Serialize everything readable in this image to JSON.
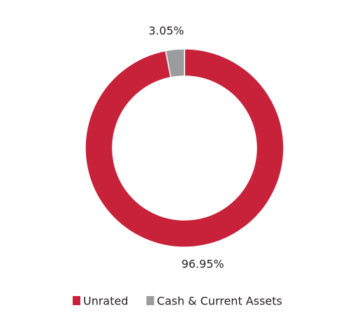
{
  "chart_data": {
    "type": "donut",
    "categories": [
      "Unrated",
      "Cash & Current Assets"
    ],
    "values": [
      96.95,
      3.05
    ],
    "value_labels": [
      "96.95%",
      "3.05%"
    ],
    "colors": [
      "#c8213a",
      "#9b9c9e"
    ],
    "legend": "bottom"
  }
}
